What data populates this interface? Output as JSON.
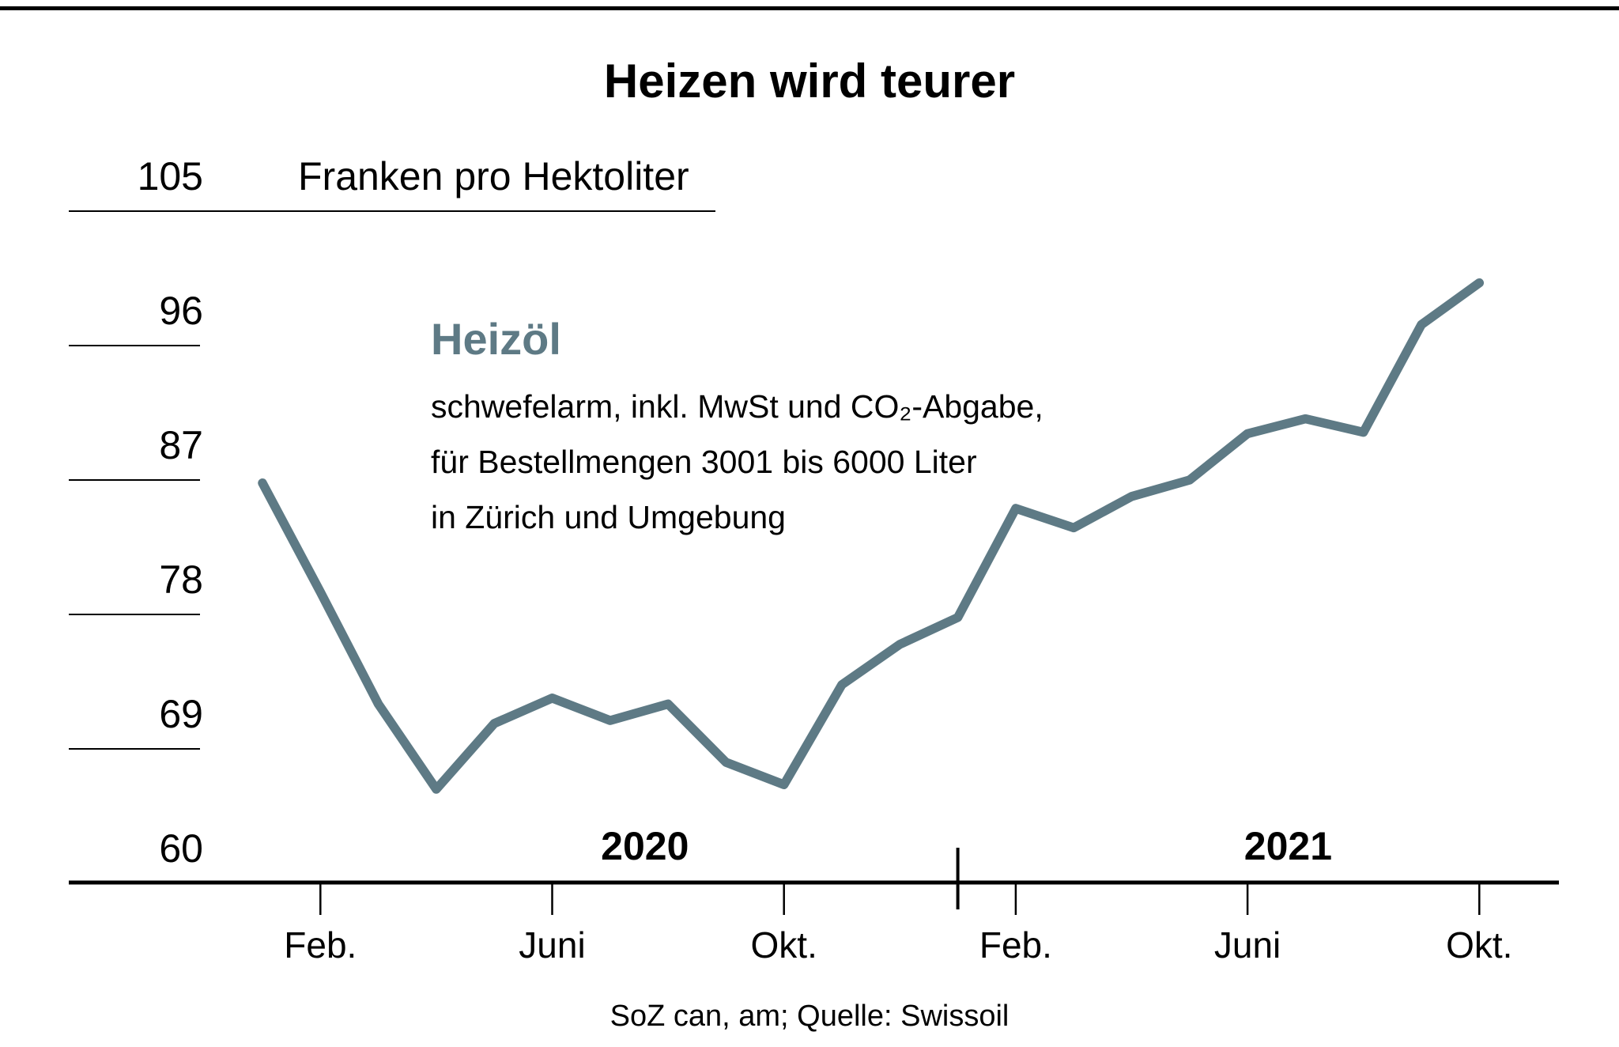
{
  "header": {
    "title": "Heizen wird teurer"
  },
  "annotation": {
    "name": "Heizöl",
    "description_lines": [
      "schwefelarm, inkl. MwSt und CO₂-Abgabe,",
      "für Bestellmengen 3001 bis 6000 Liter",
      "in Zürich und Umgebung"
    ]
  },
  "source": "SoZ can, am; Quelle: Swissoil",
  "colors": {
    "line": "#5e7a85",
    "axis": "#000000",
    "background": "#ffffff"
  },
  "chart_data": {
    "type": "line",
    "title": "Heizen wird teurer",
    "unit_label": "Franken pro Hektoliter",
    "xlabel": "",
    "ylabel": "Franken pro Hektoliter",
    "ylim": [
      60,
      105
    ],
    "grid": "short horizontal tick rules at y labels, no vertical grid",
    "legend_position": "inline annotation (Heizöl)",
    "categories": [
      "Jan. 2020",
      "Feb. 2020",
      "März 2020",
      "Apr. 2020",
      "Mai 2020",
      "Juni 2020",
      "Juli 2020",
      "Aug. 2020",
      "Sep. 2020",
      "Okt. 2020",
      "Nov. 2020",
      "Dez. 2020",
      "Jan. 2021",
      "Feb. 2021",
      "März 2021",
      "Apr. 2021",
      "Mai 2021",
      "Juni 2021",
      "Juli 2021",
      "Aug. 2021",
      "Sep. 2021",
      "Okt. 2021"
    ],
    "series": [
      {
        "name": "Heizöl",
        "color": "#5e7a85",
        "values": [
          86.8,
          79.5,
          72.0,
          66.3,
          70.7,
          72.4,
          70.9,
          72.0,
          68.1,
          66.6,
          73.3,
          76.0,
          77.8,
          85.1,
          83.8,
          85.9,
          87.0,
          90.1,
          91.1,
          90.2,
          97.4,
          100.2
        ]
      }
    ],
    "y_ticks": [
      {
        "value": 105,
        "label": "105",
        "rule": "long"
      },
      {
        "value": 96,
        "label": "96",
        "rule": "short"
      },
      {
        "value": 87,
        "label": "87",
        "rule": "short"
      },
      {
        "value": 78,
        "label": "78",
        "rule": "short"
      },
      {
        "value": 69,
        "label": "69",
        "rule": "short"
      },
      {
        "value": 60,
        "label": "60",
        "rule": "none"
      }
    ],
    "x_ticks": [
      {
        "index": 1,
        "label": "Feb."
      },
      {
        "index": 5,
        "label": "Juni"
      },
      {
        "index": 9,
        "label": "Okt."
      },
      {
        "index": 13,
        "label": "Feb."
      },
      {
        "index": 17,
        "label": "Juni"
      },
      {
        "index": 21,
        "label": "Okt."
      }
    ],
    "year_labels": [
      {
        "label": "2020",
        "center_index": 6.6
      },
      {
        "label": "2021",
        "center_index": 17.7
      }
    ],
    "year_divider_index": 12.0
  }
}
